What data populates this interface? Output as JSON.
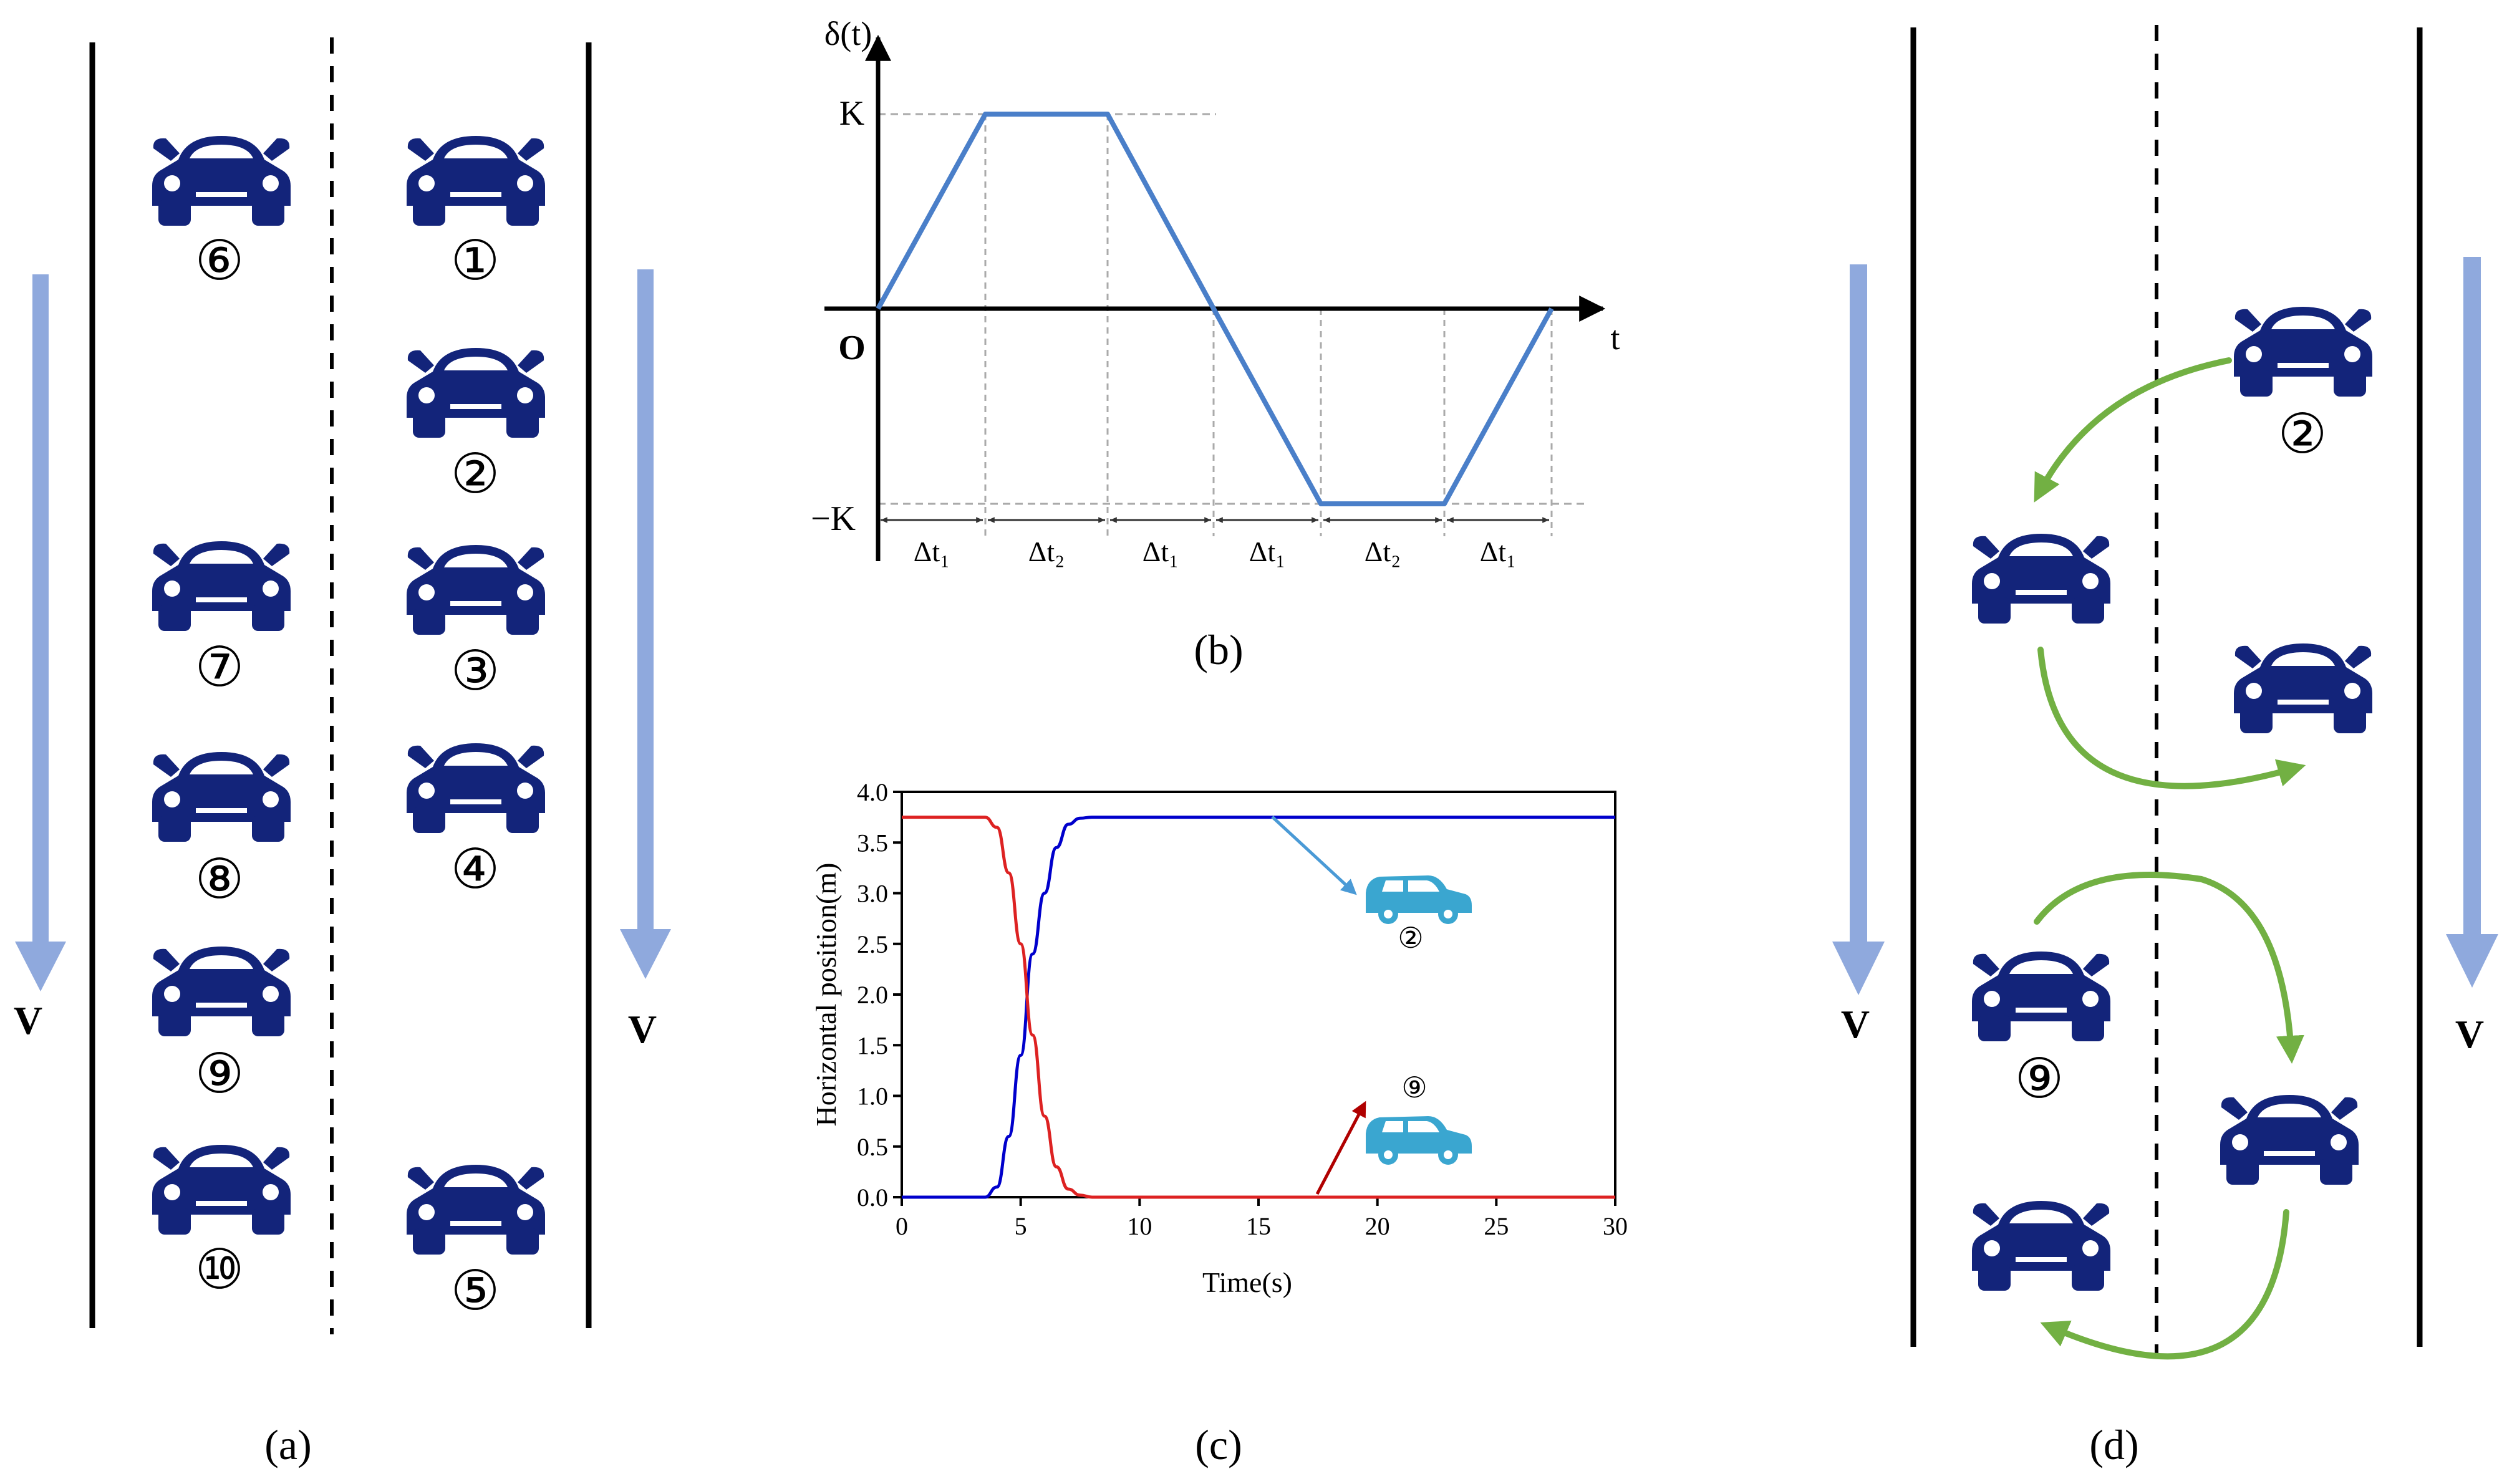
{
  "colors": {
    "car": "#13247a",
    "flow_arrow": "#8fa9dd",
    "lane_change_arrow": "#72b043",
    "car_light": "#3aa6d0",
    "series_blue": "#0000cc",
    "series_red": "#dd2222",
    "profile": "#4a7fc9",
    "annot_blue": "#4a9ad6",
    "annot_red": "#b00000"
  },
  "panel_a": {
    "caption": "(a)",
    "direction_label_left": "V",
    "direction_label_right": "V",
    "cars": [
      {
        "label": "⑥",
        "lane": "left"
      },
      {
        "label": "①",
        "lane": "right"
      },
      {
        "label": "②",
        "lane": "right"
      },
      {
        "label": "⑦",
        "lane": "left"
      },
      {
        "label": "③",
        "lane": "right"
      },
      {
        "label": "⑧",
        "lane": "left"
      },
      {
        "label": "④",
        "lane": "right"
      },
      {
        "label": "⑨",
        "lane": "left"
      },
      {
        "label": "⑩",
        "lane": "left"
      },
      {
        "label": "⑤",
        "lane": "right"
      }
    ]
  },
  "panel_b": {
    "caption": "(b)",
    "y_axis_label": "δ(t)",
    "x_axis_label": "t",
    "origin_label": "O",
    "pos_level_label": "K",
    "neg_level_label": "−K",
    "interval_labels": [
      "Δt₁",
      "Δt₂",
      "Δt₁",
      "Δt₁",
      "Δt₂",
      "Δt₁"
    ],
    "profile": {
      "segments": [
        {
          "interval": "Δt₁",
          "from": 0,
          "to": 1
        },
        {
          "interval": "Δt₂",
          "from": 1,
          "to": 1
        },
        {
          "interval": "Δt₁",
          "from": 1,
          "to": 0
        },
        {
          "interval": "Δt₁",
          "from": 0,
          "to": -1
        },
        {
          "interval": "Δt₂",
          "from": -1,
          "to": -1
        },
        {
          "interval": "Δt₁",
          "from": -1,
          "to": 0
        }
      ]
    }
  },
  "panel_c": {
    "caption": "(c)",
    "xlabel": "Time(s)",
    "ylabel": "Horizontal position(m)",
    "car2_label": "②",
    "car9_label": "⑨",
    "chart_data": {
      "type": "line",
      "xlim": [
        0,
        30
      ],
      "ylim": [
        0,
        4
      ],
      "xticks": [
        0,
        5,
        10,
        15,
        20,
        25,
        30
      ],
      "xtick_labels": [
        "0",
        "5",
        "10",
        "15",
        "20",
        "25",
        "30"
      ],
      "yticks": [
        0,
        0.5,
        1,
        1.5,
        2,
        2.5,
        3,
        3.5,
        4
      ],
      "ytick_labels": [
        "0.0",
        "0.5",
        "1.0",
        "1.5",
        "2.0",
        "2.5",
        "3.0",
        "3.5",
        "4.0"
      ],
      "series": [
        {
          "color": "#0000cc",
          "x": [
            0,
            3.5,
            4,
            4.5,
            5,
            5.5,
            6,
            6.5,
            7,
            7.5,
            8,
            30
          ],
          "y": [
            0,
            0,
            0.1,
            0.6,
            1.4,
            2.4,
            3.0,
            3.45,
            3.68,
            3.74,
            3.75,
            3.75
          ]
        },
        {
          "color": "#dd2222",
          "x": [
            0,
            3.5,
            4,
            4.5,
            5,
            5.5,
            6,
            6.5,
            7,
            7.5,
            8,
            30
          ],
          "y": [
            3.75,
            3.75,
            3.65,
            3.2,
            2.5,
            1.6,
            0.8,
            0.3,
            0.08,
            0.02,
            0,
            0
          ]
        }
      ]
    }
  },
  "panel_d": {
    "caption": "(d)",
    "direction_label_left": "V",
    "direction_label_right": "V",
    "car2_label": "②",
    "car9_label": "⑨"
  }
}
